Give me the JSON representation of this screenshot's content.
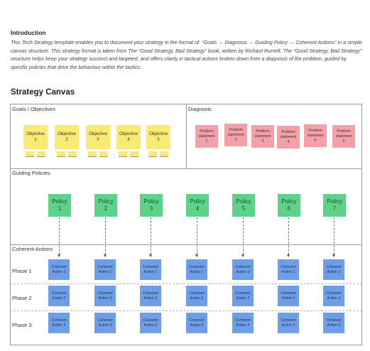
{
  "intro": {
    "title": "Introduction",
    "text": "This Tech Strategy template enables you to document your strategy in the format of: “Goals → Diagnosis → Guiding Policy → Coherent Actions” in a simple canvas structure. This strategy format is taken from The “Good Strategy, Bad Strategy” book, written by Richard Rumelt. The “Good Strategy, Bad Strategy” structure helps keep your strategy succinct and targeted, and offers clarity in tactical actions broken down from a diagnosis of the problem, guided by specific policies that drive the behaviour within the tactics."
  },
  "canvas": {
    "title": "Strategy Canvas",
    "sections": {
      "goals": "Goals / Objectives",
      "diagnosis": "Diagnosis",
      "policies": "Guiding Policies",
      "actions": "Coherent Actions"
    },
    "objectives": [
      {
        "line1": "Objective",
        "line2": "1"
      },
      {
        "line1": "Objective",
        "line2": "2"
      },
      {
        "line1": "Objective",
        "line2": "3"
      },
      {
        "line1": "Objective",
        "line2": "4"
      },
      {
        "line1": "Objective",
        "line2": "5"
      }
    ],
    "problems": [
      {
        "line1": "Problem",
        "line2": "statement",
        "line3": "1"
      },
      {
        "line1": "Problem",
        "line2": "statement",
        "line3": "2"
      },
      {
        "line1": "Problem",
        "line2": "statement",
        "line3": "3"
      },
      {
        "line1": "Problem",
        "line2": "statement",
        "line3": "4"
      },
      {
        "line1": "Problem",
        "line2": "statement",
        "line3": "5"
      },
      {
        "line1": "Problem",
        "line2": "statement",
        "line3": "6"
      }
    ],
    "policies": [
      {
        "line1": "Policy",
        "line2": "1"
      },
      {
        "line1": "Policy",
        "line2": "2"
      },
      {
        "line1": "Policy",
        "line2": "3"
      },
      {
        "line1": "Policy",
        "line2": "4"
      },
      {
        "line1": "Policy",
        "line2": "5"
      },
      {
        "line1": "Policy",
        "line2": "6"
      },
      {
        "line1": "Policy",
        "line2": "7"
      }
    ],
    "phases": [
      {
        "label": "Phase 1",
        "action_line1": "Coherent",
        "action_line2": "Action 1"
      },
      {
        "label": "Phase 2",
        "action_line1": "Coherent",
        "action_line2": "Action 2"
      },
      {
        "label": "Phase 3",
        "action_line1": "Coherent",
        "action_line2": "Action 3"
      }
    ]
  },
  "colors": {
    "objective": "#fbea72",
    "problem": "#f4a0a8",
    "policy": "#5fd28a",
    "action": "#6e9ee8"
  }
}
